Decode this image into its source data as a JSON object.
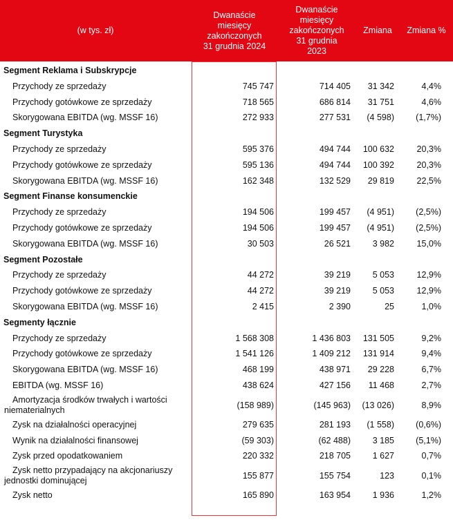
{
  "header": {
    "col0": "(w tys. zł)",
    "col1": "Dwanaście\nmiesięcy\nzakończonych\n31 grudnia 2024",
    "col2": "Dwanaście\nmiesięcy\nzakończonych\n31 grudnia\n2023",
    "col3": "Zmiana",
    "col4": "Zmiana %"
  },
  "colors": {
    "header_bg": "#e30613",
    "frame": "#e8343d"
  },
  "rows": [
    {
      "type": "seg",
      "label": "Segment Reklama i Subskrypcje"
    },
    {
      "label": "Przychody ze sprzedaży",
      "v2024": "745 747",
      "v2023": "714 405",
      "change": "31 342",
      "pct": "4,4%"
    },
    {
      "label": "Przychody gotówkowe ze sprzedaży",
      "v2024": "718 565",
      "v2023": "686 814",
      "change": "31 751",
      "pct": "4,6%"
    },
    {
      "label": "Skorygowana EBITDA (wg. MSSF 16)",
      "v2024": "272 933",
      "v2023": "277 531",
      "change": "(4 598)",
      "pct": "(1,7%)"
    },
    {
      "type": "seg",
      "label": "Segment Turystyka"
    },
    {
      "label": "Przychody ze sprzedaży",
      "v2024": "595 376",
      "v2023": "494 744",
      "change": "100 632",
      "pct": "20,3%"
    },
    {
      "label": "Przychody gotówkowe ze sprzedaży",
      "v2024": "595 136",
      "v2023": "494 744",
      "change": "100 392",
      "pct": "20,3%"
    },
    {
      "label": "Skorygowana EBITDA (wg. MSSF 16)",
      "v2024": "162 348",
      "v2023": "132 529",
      "change": "29 819",
      "pct": "22,5%"
    },
    {
      "type": "seg",
      "label": "Segment Finanse konsumenckie"
    },
    {
      "label": "Przychody ze sprzedaży",
      "v2024": "194 506",
      "v2023": "199 457",
      "change": "(4 951)",
      "pct": "(2,5%)"
    },
    {
      "label": "Przychody gotówkowe ze sprzedaży",
      "v2024": "194 506",
      "v2023": "199 457",
      "change": "(4 951)",
      "pct": "(2,5%)"
    },
    {
      "label": "Skorygowana EBITDA (wg. MSSF 16)",
      "v2024": "30 503",
      "v2023": "26 521",
      "change": "3 982",
      "pct": "15,0%"
    },
    {
      "type": "seg",
      "label": "Segment Pozostałe"
    },
    {
      "label": "Przychody ze sprzedaży",
      "v2024": "44 272",
      "v2023": "39 219",
      "change": "5 053",
      "pct": "12,9%"
    },
    {
      "label": "Przychody gotówkowe ze sprzedaży",
      "v2024": "44 272",
      "v2023": "39 219",
      "change": "5 053",
      "pct": "12,9%"
    },
    {
      "label": "Skorygowana EBITDA (wg. MSSF 16)",
      "v2024": "2 415",
      "v2023": "2 390",
      "change": "25",
      "pct": "1,0%"
    },
    {
      "type": "seg",
      "label": "Segmenty łącznie"
    },
    {
      "label": "Przychody ze sprzedaży",
      "v2024": "1 568 308",
      "v2023": "1 436 803",
      "change": "131 505",
      "pct": "9,2%"
    },
    {
      "label": "Przychody gotówkowe ze sprzedaży",
      "v2024": "1 541 126",
      "v2023": "1 409 212",
      "change": "131 914",
      "pct": "9,4%"
    },
    {
      "label": "Skorygowana EBITDA (wg. MSSF 16)",
      "v2024": "468 199",
      "v2023": "438 971",
      "change": "29 228",
      "pct": "6,7%"
    },
    {
      "label": "EBITDA (wg. MSSF 16)",
      "v2024": "438 624",
      "v2023": "427 156",
      "change": "11 468",
      "pct": "2,7%"
    },
    {
      "type": "two",
      "label": "Amortyzacja środków trwałych i wartości\nniematerialnych",
      "v2024": "(158 989)",
      "v2023": "(145 963)",
      "change": "(13 026)",
      "pct": "8,9%"
    },
    {
      "label": "Zysk na działalności operacyjnej",
      "v2024": "279 635",
      "v2023": "281 193",
      "change": "(1 558)",
      "pct": "(0,6%)"
    },
    {
      "label": "Wynik na działalności finansowej",
      "v2024": "(59 303)",
      "v2023": "(62 488)",
      "change": "3 185",
      "pct": "(5,1%)"
    },
    {
      "label": "Zysk przed opodatkowaniem",
      "v2024": "220 332",
      "v2023": "218 705",
      "change": "1 627",
      "pct": "0,7%"
    },
    {
      "type": "two",
      "label": "Zysk netto przypadający na akcjonariuszy\njednostki dominującej",
      "v2024": "155 877",
      "v2023": "155 754",
      "change": "123",
      "pct": "0,1%"
    },
    {
      "label": "Zysk netto",
      "v2024": "165 890",
      "v2023": "163 954",
      "change": "1 936",
      "pct": "1,2%"
    }
  ]
}
